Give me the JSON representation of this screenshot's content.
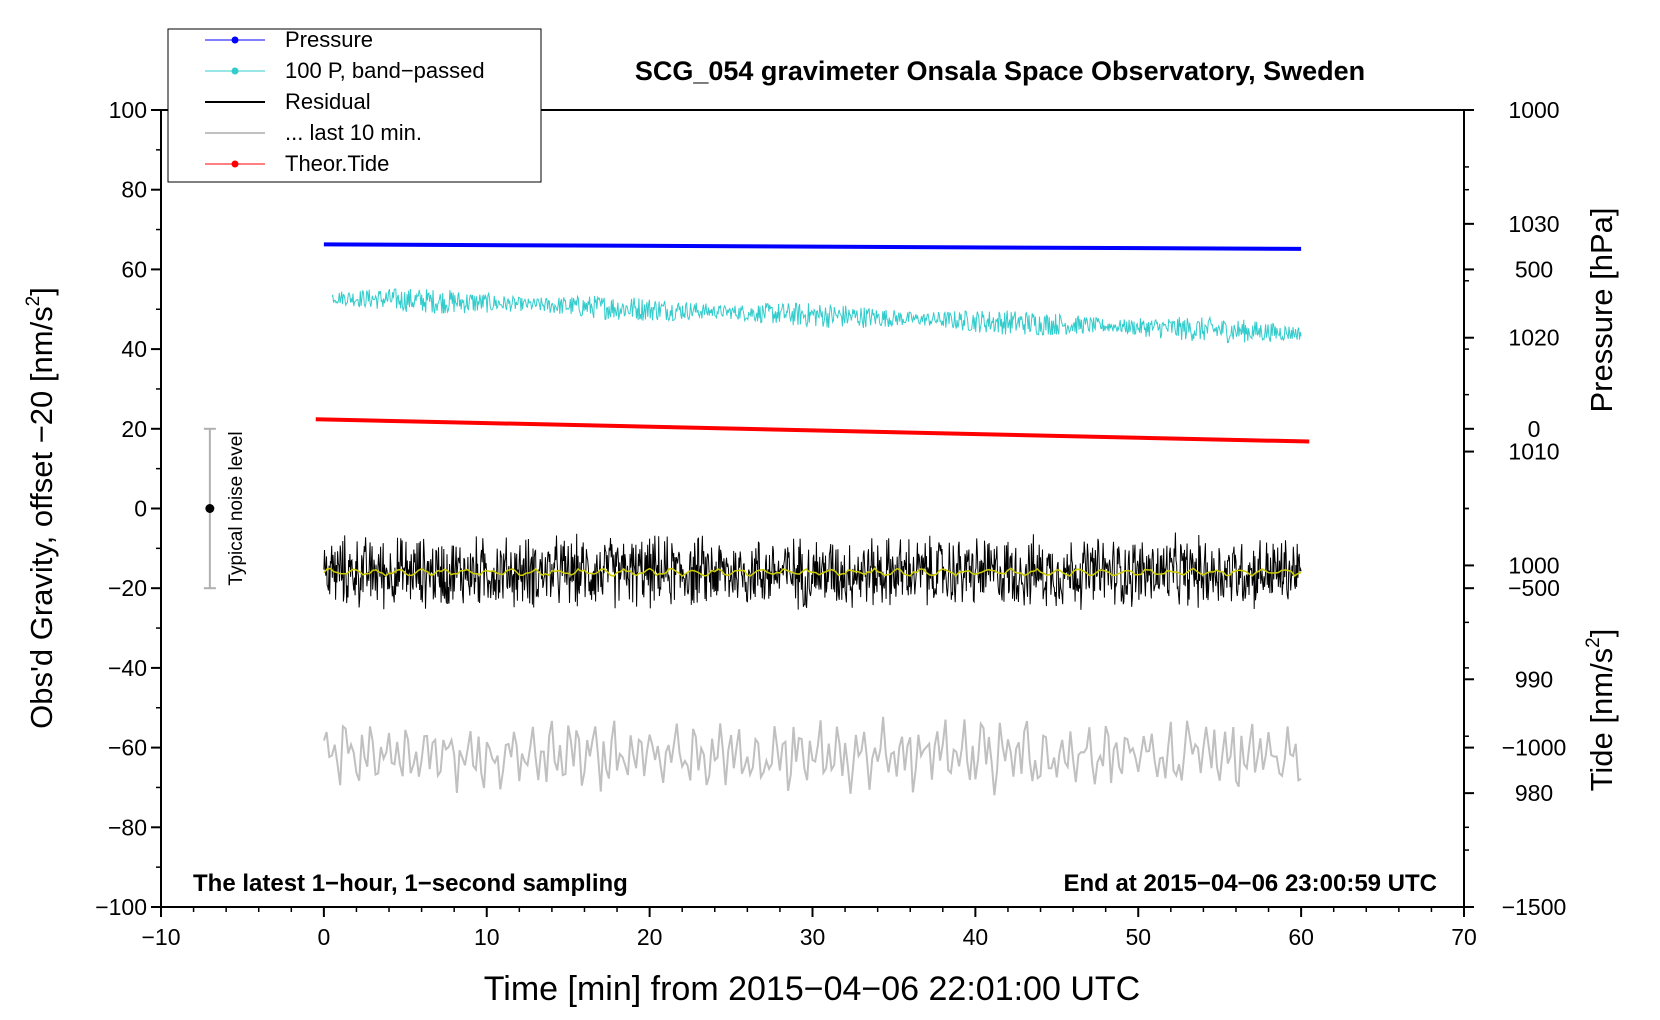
{
  "chart_data": {
    "type": "line",
    "title": "SCG_054 gravimeter Onsala Space Observatory, Sweden",
    "xlabel": "Time [min] from 2015−04−06 22:01:00 UTC",
    "ylabel_left": "Obs'd Gravity, offset −20 [nm/s",
    "ylabel_left_sup": "2",
    "ylabel_left_close": "]",
    "ylabel_right_pressure": "Pressure [hPa]",
    "ylabel_right_tide": "Tide [nm/s",
    "ylabel_right_tide_sup": "2",
    "ylabel_right_tide_close": "]",
    "xlim": [
      -10,
      70
    ],
    "ylim": [
      -100,
      100
    ],
    "pressure_axis_range": [
      970,
      1040
    ],
    "tide_axis_range": [
      -1500,
      1000
    ],
    "x_ticks": [
      {
        "v": -10,
        "label": "−10"
      },
      {
        "v": 0,
        "label": "0"
      },
      {
        "v": 10,
        "label": "10"
      },
      {
        "v": 20,
        "label": "20"
      },
      {
        "v": 30,
        "label": "30"
      },
      {
        "v": 40,
        "label": "40"
      },
      {
        "v": 50,
        "label": "50"
      },
      {
        "v": 60,
        "label": "60"
      },
      {
        "v": 70,
        "label": "70"
      }
    ],
    "y_ticks": [
      {
        "v": 100,
        "label": "100"
      },
      {
        "v": 80,
        "label": "80"
      },
      {
        "v": 60,
        "label": "60"
      },
      {
        "v": 40,
        "label": "40"
      },
      {
        "v": 20,
        "label": "20"
      },
      {
        "v": 0,
        "label": "0"
      },
      {
        "v": -20,
        "label": "−20"
      },
      {
        "v": -40,
        "label": "−40"
      },
      {
        "v": -60,
        "label": "−60"
      },
      {
        "v": -80,
        "label": "−80"
      },
      {
        "v": -100,
        "label": "−100"
      }
    ],
    "pressure_ticks": [
      {
        "v": 1030,
        "label": "1030"
      },
      {
        "v": 1020,
        "label": "1020"
      },
      {
        "v": 1010,
        "label": "1010"
      },
      {
        "v": 1000,
        "label": "1000"
      },
      {
        "v": 990,
        "label": "990"
      },
      {
        "v": 980,
        "label": "980"
      }
    ],
    "tide_ticks": [
      {
        "v": 1000,
        "label": "1000"
      },
      {
        "v": 500,
        "label": "500"
      },
      {
        "v": 0,
        "label": "0"
      },
      {
        "v": -500,
        "label": "−500"
      },
      {
        "v": -1000,
        "label": "−1000"
      },
      {
        "v": -1500,
        "label": "−1500"
      }
    ],
    "series": [
      {
        "name": "Pressure",
        "color": "#0000ff",
        "axis": "pressure",
        "x_range": [
          0,
          60
        ],
        "start": 1028.2,
        "end": 1027.8
      },
      {
        "name": "100 P, band−passed",
        "color": "#33cccc",
        "axis": "gravity",
        "x_range": [
          0.5,
          60
        ],
        "start": 53,
        "end": 44,
        "amplitude": 2.6
      },
      {
        "name": "Residual",
        "color": "#000000",
        "axis": "gravity",
        "x_range": [
          0,
          60
        ],
        "mean": -16,
        "amplitude": 8
      },
      {
        "name": "... last 10 min.",
        "color": "#c0c0c0",
        "axis": "gravity",
        "x_range": [
          0,
          60
        ],
        "mean": -62,
        "amplitude": 4.5
      },
      {
        "name": "Theor.Tide",
        "color": "#ff0000",
        "axis": "tide",
        "x_range": [
          -0.5,
          60.5
        ],
        "start": 30,
        "end": -40
      }
    ],
    "smoothed_residual_color": "#cccc00",
    "noise_indicator": {
      "label": "Typical noise level",
      "x": -7,
      "center": 0,
      "low": -20,
      "high": 20
    },
    "annotations": {
      "bottom_left": "The latest 1−hour, 1−second sampling",
      "bottom_right": "End at 2015−04−06 23:00:59 UTC"
    },
    "legend_position": "top-left"
  }
}
